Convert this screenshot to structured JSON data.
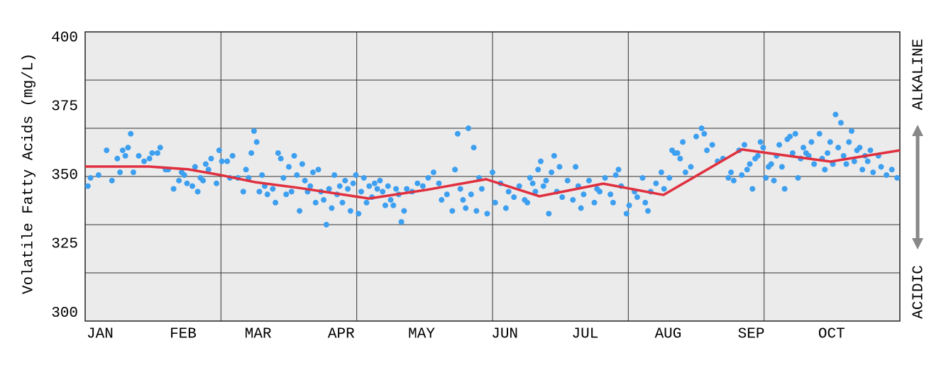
{
  "chart_data": {
    "type": "scatter",
    "y_label": "Volatile Fatty Acids (mg/L)",
    "annotations": [
      "ALKALINE",
      "ACIDIC"
    ],
    "xlim": [
      0,
      304
    ],
    "xticks": [
      {
        "value": 0,
        "label": "JAN"
      },
      {
        "value": 31,
        "label": "FEB"
      },
      {
        "value": 59,
        "label": "MAR"
      },
      {
        "value": 90,
        "label": "APR"
      },
      {
        "value": 120,
        "label": "MAY"
      },
      {
        "value": 151,
        "label": "JUN"
      },
      {
        "value": 181,
        "label": "JUL"
      },
      {
        "value": 212,
        "label": "AUG"
      },
      {
        "value": 243,
        "label": "SEP"
      },
      {
        "value": 273,
        "label": "OCT"
      }
    ],
    "ylim": [
      297,
      402
    ],
    "yticks": [
      300,
      325,
      350,
      375,
      400
    ],
    "grid": true,
    "points": {
      "color": "#3d9ff0",
      "x": [
        1,
        2,
        5,
        8,
        10,
        12,
        13,
        14,
        15,
        16,
        17,
        18,
        20,
        22,
        24,
        25,
        27,
        28,
        30,
        31,
        33,
        35,
        36,
        37,
        38,
        40,
        41,
        42,
        43,
        44,
        45,
        46,
        47,
        49,
        50,
        51,
        53,
        54,
        55,
        57,
        59,
        60,
        61,
        62,
        63,
        64,
        65,
        66,
        67,
        68,
        70,
        71,
        72,
        73,
        74,
        75,
        76,
        77,
        78,
        79,
        80,
        81,
        82,
        83,
        84,
        85,
        86,
        87,
        88,
        89,
        90,
        91,
        92,
        93,
        94,
        95,
        96,
        97,
        98,
        99,
        100,
        101,
        102,
        103,
        104,
        105,
        106,
        107,
        108,
        109,
        110,
        111,
        112,
        113,
        114,
        115,
        116,
        117,
        118,
        119,
        120,
        122,
        124,
        126,
        128,
        130,
        132,
        133,
        135,
        137,
        138,
        139,
        140,
        141,
        142,
        143,
        144,
        145,
        146,
        147,
        148,
        150,
        152,
        153,
        155,
        157,
        158,
        160,
        162,
        164,
        165,
        166,
        167,
        168,
        169,
        170,
        171,
        172,
        173,
        174,
        175,
        176,
        177,
        178,
        180,
        182,
        183,
        184,
        185,
        186,
        188,
        190,
        191,
        192,
        194,
        196,
        197,
        198,
        199,
        200,
        202,
        203,
        205,
        206,
        208,
        209,
        210,
        211,
        213,
        215,
        216,
        218,
        219,
        220,
        221,
        222,
        223,
        224,
        226,
        228,
        230,
        231,
        232,
        234,
        236,
        238,
        240,
        241,
        242,
        244,
        245,
        246,
        247,
        248,
        249,
        250,
        251,
        252,
        253,
        254,
        255,
        256,
        257,
        258,
        259,
        260,
        261,
        262,
        263,
        264,
        265,
        266,
        267,
        268,
        269,
        270,
        271,
        272,
        274,
        275,
        276,
        277,
        278,
        279,
        280,
        281,
        282,
        283,
        284,
        285,
        286,
        287,
        288,
        289,
        290,
        291,
        292,
        293,
        294,
        296,
        297,
        299,
        301,
        303
      ],
      "values": [
        346,
        349,
        350,
        359,
        348,
        356,
        351,
        359,
        357,
        360,
        365,
        351,
        357,
        355,
        356,
        358,
        358,
        360,
        352,
        352,
        345,
        348,
        351,
        350,
        347,
        346,
        353,
        344,
        349,
        348,
        354,
        352,
        356,
        347,
        359,
        355,
        355,
        349,
        357,
        349,
        344,
        352,
        349,
        358,
        366,
        362,
        344,
        350,
        346,
        343,
        345,
        340,
        358,
        356,
        349,
        343,
        353,
        344,
        357,
        350,
        337,
        354,
        348,
        344,
        346,
        351,
        340,
        352,
        344,
        341,
        332,
        345,
        338,
        350,
        343,
        346,
        340,
        348,
        345,
        337,
        347,
        350,
        336,
        344,
        349,
        340,
        346,
        342,
        347,
        345,
        348,
        344,
        339,
        346,
        341,
        339,
        345,
        343,
        333,
        337,
        345,
        344,
        347,
        346,
        349,
        351,
        347,
        341,
        343,
        337,
        352,
        365,
        345,
        341,
        338,
        367,
        343,
        360,
        337,
        349,
        345,
        336,
        351,
        340,
        347,
        338,
        344,
        342,
        346,
        341,
        340,
        349,
        347,
        344,
        352,
        355,
        346,
        348,
        336,
        351,
        357,
        344,
        353,
        342,
        348,
        341,
        353,
        346,
        338,
        343,
        348,
        340,
        345,
        344,
        349,
        343,
        340,
        350,
        352,
        346,
        336,
        339,
        344,
        342,
        349,
        340,
        337,
        344,
        347,
        351,
        345,
        349,
        359,
        358,
        358,
        356,
        362,
        351,
        353,
        364,
        367,
        365,
        359,
        361,
        355,
        356,
        349,
        351,
        348,
        359,
        350,
        361,
        352,
        354,
        345,
        356,
        357,
        362,
        360,
        349,
        353,
        354,
        348,
        357,
        361,
        353,
        345,
        363,
        364,
        358,
        365,
        349,
        356,
        360,
        358,
        357,
        362,
        354,
        365,
        356,
        352,
        358,
        362,
        354,
        372,
        360,
        369,
        357,
        354,
        362,
        366,
        355,
        359,
        360,
        352,
        357,
        355,
        359,
        351,
        357,
        353,
        350,
        352,
        349
      ]
    },
    "trend": {
      "type": "line",
      "color": "#e02f3e",
      "x": [
        0,
        23.8,
        38.4,
        50.6,
        63.6,
        79.4,
        105.9,
        127.1,
        149.6,
        169.5,
        193.3,
        215.8,
        245,
        278.1,
        304
      ],
      "values": [
        353.1,
        353.1,
        352.1,
        350,
        347.4,
        345.4,
        341.5,
        344.6,
        348.5,
        342.3,
        346.9,
        342.8,
        359.3,
        354.9,
        359
      ]
    }
  }
}
